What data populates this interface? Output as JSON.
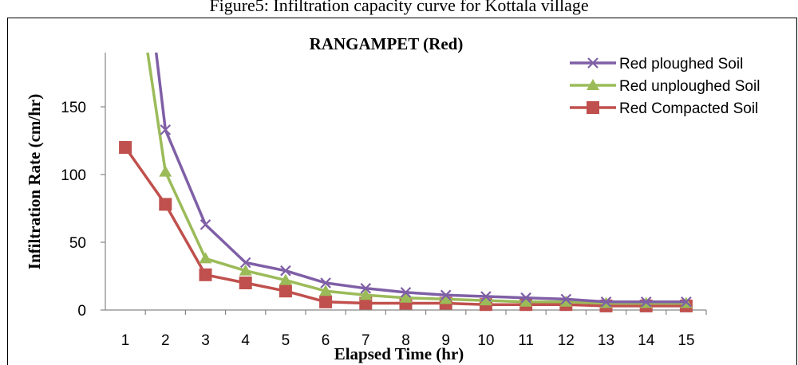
{
  "caption": "Figure5: Infiltration capacity curve for Kottala village",
  "chart_data": {
    "type": "line",
    "title": "RANGAMPET (Red)",
    "xlabel": "Elapsed Time (hr)",
    "ylabel": "Infiltration  Rate (cm/hr)",
    "categories": [
      "1",
      "2",
      "3",
      "4",
      "5",
      "6",
      "7",
      "8",
      "9",
      "10",
      "11",
      "12",
      "13",
      "14",
      "15"
    ],
    "ylim": [
      0,
      190
    ],
    "yticks": [
      0,
      50,
      100,
      150
    ],
    "grid": false,
    "legend_position": "top-right",
    "series": [
      {
        "name": "Red ploughed Soil",
        "color": "#7f5fa6",
        "marker": "x",
        "values": [
          380,
          133,
          63,
          35,
          29,
          20,
          16,
          13,
          11,
          10,
          9,
          8,
          6,
          6,
          6
        ]
      },
      {
        "name": "Red unploughed Soil",
        "color": "#9bbb59",
        "marker": "triangle",
        "values": [
          300,
          102,
          38,
          29,
          22,
          14,
          11,
          9,
          8,
          7,
          6,
          6,
          5,
          5,
          5
        ]
      },
      {
        "name": "Red Compacted Soil",
        "color": "#c0504d",
        "marker": "square",
        "values": [
          120,
          78,
          26,
          20,
          14,
          6,
          5,
          5,
          5,
          4,
          4,
          4,
          3,
          3,
          3
        ]
      }
    ]
  }
}
